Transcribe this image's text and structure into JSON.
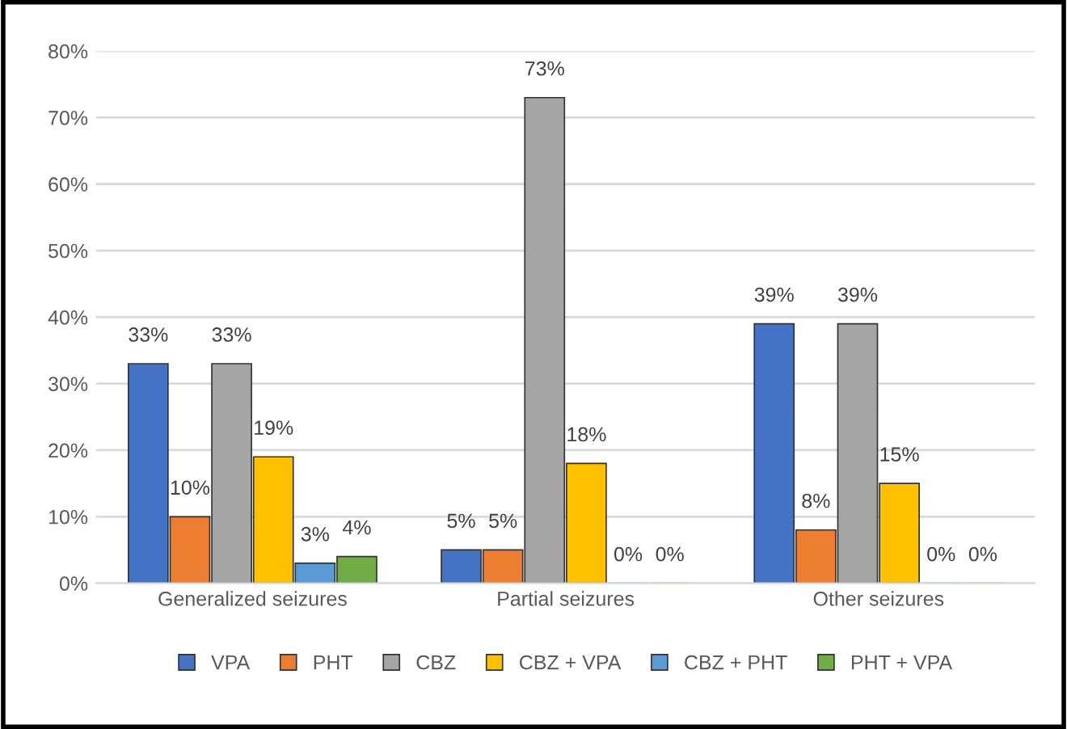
{
  "chart_data": {
    "type": "bar",
    "categories": [
      "Generalized seizures",
      "Partial seizures",
      "Other seizures"
    ],
    "series": [
      {
        "name": "VPA",
        "color": "#4472c4",
        "values": [
          33,
          5,
          39
        ],
        "value_labels": [
          "33%",
          "5%",
          "39%"
        ]
      },
      {
        "name": "PHT",
        "color": "#ed7d31",
        "values": [
          10,
          5,
          8
        ],
        "value_labels": [
          "10%",
          "5%",
          "8%"
        ]
      },
      {
        "name": "CBZ",
        "color": "#a5a5a5",
        "values": [
          33,
          73,
          39
        ],
        "value_labels": [
          "33%",
          "73%",
          "39%"
        ]
      },
      {
        "name": "CBZ + VPA",
        "color": "#ffc000",
        "values": [
          19,
          18,
          15
        ],
        "value_labels": [
          "19%",
          "18%",
          "15%"
        ]
      },
      {
        "name": "CBZ + PHT",
        "color": "#5b9bd5",
        "values": [
          3,
          0,
          0
        ],
        "value_labels": [
          "3%",
          "0%",
          "0%"
        ]
      },
      {
        "name": "PHT + VPA",
        "color": "#70ad47",
        "values": [
          4,
          0,
          0
        ],
        "value_labels": [
          "4%",
          "0%",
          "0%"
        ]
      }
    ],
    "ylim": [
      0,
      80
    ],
    "yticks": [
      {
        "value": 0,
        "label": "0%"
      },
      {
        "value": 10,
        "label": "10%"
      },
      {
        "value": 20,
        "label": "20%"
      },
      {
        "value": 30,
        "label": "30%"
      },
      {
        "value": 40,
        "label": "40%"
      },
      {
        "value": 50,
        "label": "50%"
      },
      {
        "value": 60,
        "label": "60%"
      },
      {
        "value": 70,
        "label": "70%"
      },
      {
        "value": 80,
        "label": "80%"
      }
    ],
    "grid": "y",
    "legend": "bottom"
  }
}
